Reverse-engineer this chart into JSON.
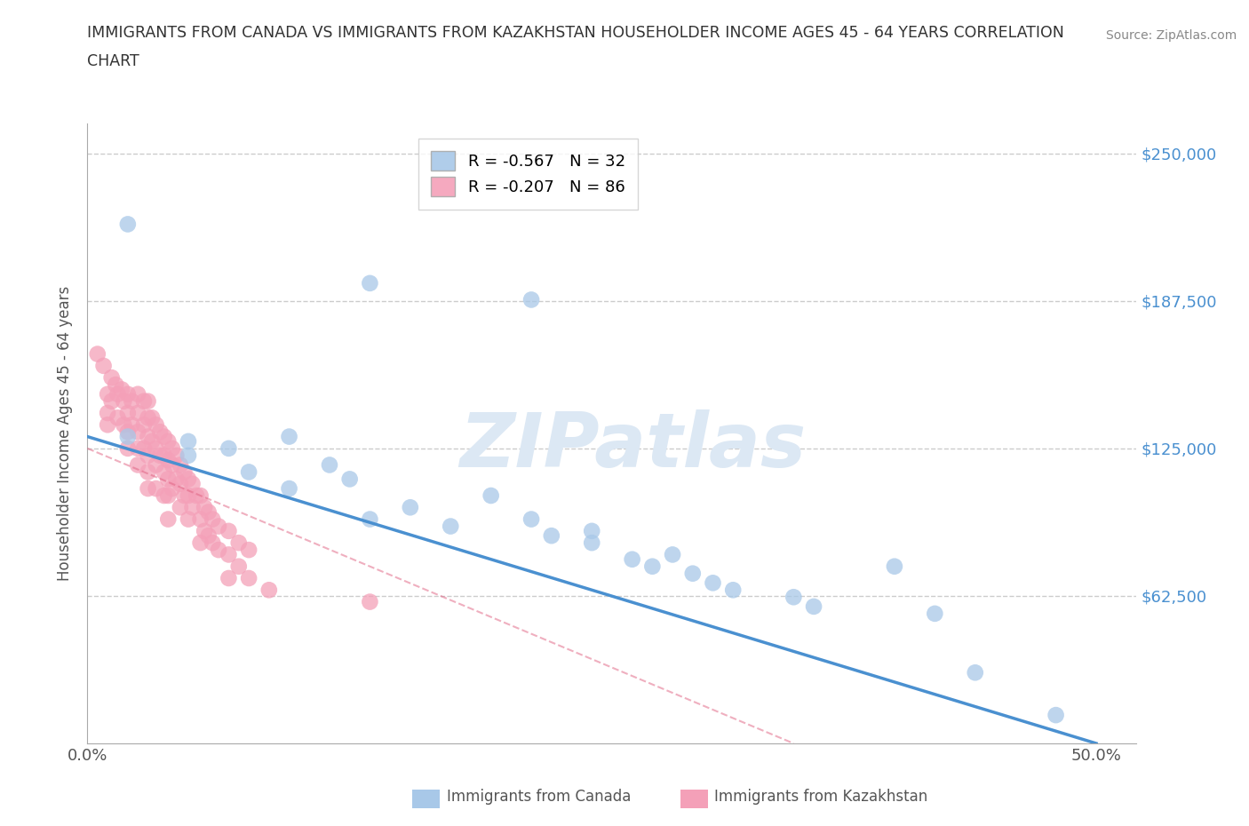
{
  "title_line1": "IMMIGRANTS FROM CANADA VS IMMIGRANTS FROM KAZAKHSTAN HOUSEHOLDER INCOME AGES 45 - 64 YEARS CORRELATION",
  "title_line2": "CHART",
  "source": "Source: ZipAtlas.com",
  "ylabel": "Householder Income Ages 45 - 64 years",
  "xlim": [
    0.0,
    0.52
  ],
  "ylim": [
    0,
    262500
  ],
  "xticks": [
    0.0,
    0.1,
    0.2,
    0.3,
    0.4,
    0.5
  ],
  "xticklabels": [
    "0.0%",
    "",
    "",
    "",
    "",
    "50.0%"
  ],
  "ytick_vals": [
    0,
    62500,
    125000,
    187500,
    250000
  ],
  "ytick_labels": [
    "",
    "$62,500",
    "$125,000",
    "$187,500",
    "$250,000"
  ],
  "canada_color": "#a8c8e8",
  "kazakhstan_color": "#f4a0b8",
  "canada_line_color": "#4a90d0",
  "kazakhstan_line_color": "#e06080",
  "watermark": "ZIPatlas",
  "watermark_color": "#dce8f4",
  "background_color": "#ffffff",
  "grid_color": "#cccccc",
  "legend_canada_label": "R = -0.567   N = 32",
  "legend_kazakhstan_label": "R = -0.207   N = 86",
  "canada_x": [
    0.02,
    0.14,
    0.22,
    0.02,
    0.05,
    0.07,
    0.05,
    0.08,
    0.1,
    0.12,
    0.1,
    0.13,
    0.14,
    0.16,
    0.18,
    0.2,
    0.22,
    0.23,
    0.25,
    0.25,
    0.27,
    0.28,
    0.29,
    0.3,
    0.31,
    0.32,
    0.35,
    0.36,
    0.4,
    0.42,
    0.44,
    0.48
  ],
  "canada_y": [
    220000,
    195000,
    188000,
    130000,
    128000,
    125000,
    122000,
    115000,
    130000,
    118000,
    108000,
    112000,
    95000,
    100000,
    92000,
    105000,
    95000,
    88000,
    90000,
    85000,
    78000,
    75000,
    80000,
    72000,
    68000,
    65000,
    62000,
    58000,
    75000,
    55000,
    30000,
    12000
  ],
  "kazakhstan_x": [
    0.005,
    0.008,
    0.01,
    0.01,
    0.01,
    0.012,
    0.012,
    0.014,
    0.015,
    0.015,
    0.017,
    0.018,
    0.018,
    0.02,
    0.02,
    0.02,
    0.02,
    0.022,
    0.022,
    0.025,
    0.025,
    0.025,
    0.025,
    0.025,
    0.028,
    0.028,
    0.028,
    0.03,
    0.03,
    0.03,
    0.03,
    0.03,
    0.03,
    0.032,
    0.032,
    0.034,
    0.034,
    0.034,
    0.034,
    0.036,
    0.036,
    0.038,
    0.038,
    0.038,
    0.038,
    0.04,
    0.04,
    0.04,
    0.04,
    0.04,
    0.042,
    0.042,
    0.042,
    0.044,
    0.044,
    0.046,
    0.046,
    0.046,
    0.048,
    0.048,
    0.05,
    0.05,
    0.05,
    0.052,
    0.052,
    0.054,
    0.056,
    0.056,
    0.056,
    0.058,
    0.058,
    0.06,
    0.06,
    0.062,
    0.062,
    0.065,
    0.065,
    0.07,
    0.07,
    0.07,
    0.075,
    0.075,
    0.08,
    0.08,
    0.09,
    0.14
  ],
  "kazakhstan_y": [
    165000,
    160000,
    148000,
    140000,
    135000,
    155000,
    145000,
    152000,
    148000,
    138000,
    150000,
    145000,
    135000,
    148000,
    140000,
    132000,
    125000,
    145000,
    135000,
    148000,
    140000,
    132000,
    125000,
    118000,
    145000,
    135000,
    125000,
    145000,
    138000,
    130000,
    122000,
    115000,
    108000,
    138000,
    128000,
    135000,
    125000,
    118000,
    108000,
    132000,
    122000,
    130000,
    122000,
    115000,
    105000,
    128000,
    120000,
    112000,
    105000,
    95000,
    125000,
    118000,
    108000,
    122000,
    112000,
    118000,
    110000,
    100000,
    115000,
    105000,
    112000,
    105000,
    95000,
    110000,
    100000,
    105000,
    105000,
    95000,
    85000,
    100000,
    90000,
    98000,
    88000,
    95000,
    85000,
    92000,
    82000,
    90000,
    80000,
    70000,
    85000,
    75000,
    82000,
    70000,
    65000,
    60000
  ]
}
